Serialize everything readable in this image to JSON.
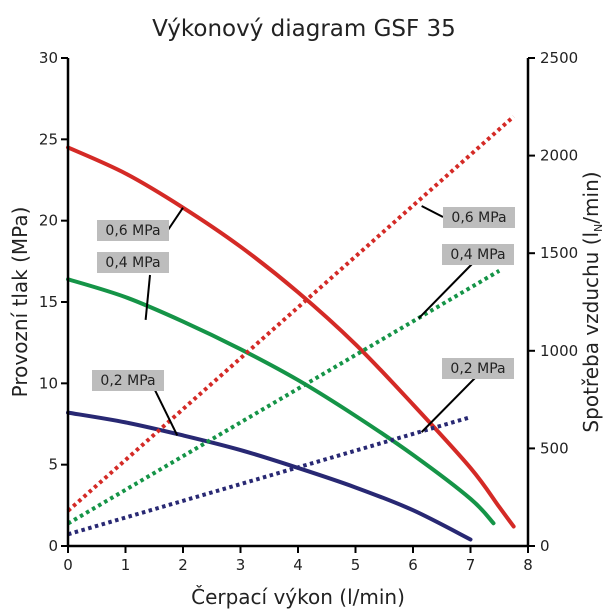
{
  "chart_data": {
    "type": "line",
    "title": "Výkonový diagram GSF 35",
    "xlabel": "Čerpací výkon (l/min)",
    "ylabel_left": "Provozní tlak (MPa)",
    "ylabel_right": "Spotřeba vzduchu (l",
    "ylabel_right_sub": "N",
    "ylabel_right_end": "/min)",
    "xlim": [
      0,
      8
    ],
    "ylim_left": [
      0,
      30
    ],
    "ylim_right": [
      0,
      2500
    ],
    "xticks": [
      "0",
      "1",
      "2",
      "3",
      "4",
      "5",
      "6",
      "7",
      "8"
    ],
    "yticks_left": [
      "0",
      "5",
      "10",
      "15",
      "20",
      "25",
      "30"
    ],
    "yticks_right": [
      "0",
      "500",
      "1000",
      "1500",
      "2000",
      "2500"
    ],
    "grid": false,
    "series": [
      {
        "name": "0,6 MPa",
        "kind": "pressure",
        "axis": "left",
        "style": "solid",
        "color": "#d42a26",
        "points": [
          [
            0,
            24.5
          ],
          [
            1,
            22.9
          ],
          [
            2,
            20.8
          ],
          [
            3,
            18.4
          ],
          [
            4,
            15.6
          ],
          [
            5,
            12.4
          ],
          [
            6,
            8.7
          ],
          [
            7,
            4.8
          ],
          [
            7.5,
            2.4
          ],
          [
            7.75,
            1.2
          ]
        ]
      },
      {
        "name": "0,4 MPa",
        "kind": "pressure",
        "axis": "left",
        "style": "solid",
        "color": "#159447",
        "points": [
          [
            0,
            16.4
          ],
          [
            1,
            15.3
          ],
          [
            2,
            13.8
          ],
          [
            3,
            12.1
          ],
          [
            4,
            10.2
          ],
          [
            5,
            8.0
          ],
          [
            6,
            5.6
          ],
          [
            7,
            2.9
          ],
          [
            7.4,
            1.4
          ]
        ]
      },
      {
        "name": "0,2 MPa",
        "kind": "pressure",
        "axis": "left",
        "style": "solid",
        "color": "#282873",
        "points": [
          [
            0,
            8.2
          ],
          [
            1,
            7.6
          ],
          [
            2,
            6.8
          ],
          [
            3,
            5.9
          ],
          [
            4,
            4.8
          ],
          [
            5,
            3.6
          ],
          [
            6,
            2.2
          ],
          [
            7,
            0.4
          ]
        ]
      },
      {
        "name": "0,6 MPa",
        "kind": "air",
        "axis": "right",
        "style": "dotted",
        "color": "#d42a26",
        "points": [
          [
            0,
            180
          ],
          [
            7.75,
            2200
          ]
        ]
      },
      {
        "name": "0,4 MPa",
        "kind": "air",
        "axis": "right",
        "style": "dotted",
        "color": "#159447",
        "points": [
          [
            0,
            115
          ],
          [
            7.5,
            1410
          ]
        ]
      },
      {
        "name": "0,2 MPa",
        "kind": "air",
        "axis": "right",
        "style": "dotted",
        "color": "#282873",
        "points": [
          [
            0,
            60
          ],
          [
            7,
            660
          ]
        ]
      }
    ],
    "annotations": [
      {
        "text": "0,6 MPa",
        "anchor_x": 2.0,
        "anchor_y_left": 20.8
      },
      {
        "text": "0,4 MPa",
        "anchor_x": 1.35,
        "anchor_y_left": 13.9
      },
      {
        "text": "0,2 MPa",
        "anchor_x": 1.9,
        "anchor_y_left": 6.8
      },
      {
        "text": "0,6 MPa",
        "anchor_x": 6.15,
        "anchor_y_left": 20.9
      },
      {
        "text": "0,4 MPa",
        "anchor_x": 6.1,
        "anchor_y_left": 14.0
      },
      {
        "text": "0,2 MPa",
        "anchor_x": 6.15,
        "anchor_y_left": 7.0
      }
    ]
  }
}
